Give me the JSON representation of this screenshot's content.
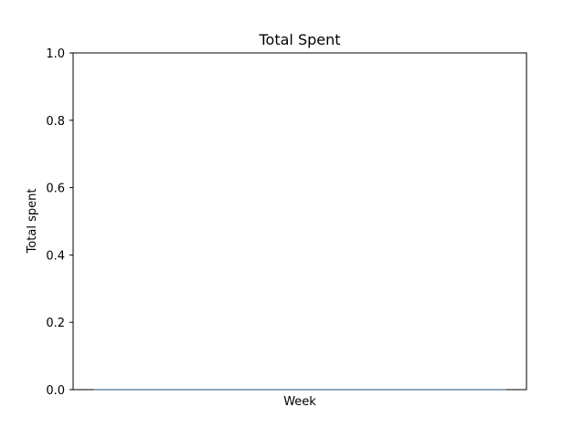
{
  "chart_data": {
    "type": "bar",
    "title": "Total Spent",
    "xlabel": "Week",
    "ylabel": "Total spent",
    "ylim": [
      0,
      1.0
    ],
    "yticks": [
      "0.0",
      "0.2",
      "0.4",
      "0.6",
      "0.8",
      "1.0"
    ],
    "categories": [
      ""
    ],
    "values": [
      0
    ],
    "grid": false,
    "color": "#1f4e79"
  }
}
